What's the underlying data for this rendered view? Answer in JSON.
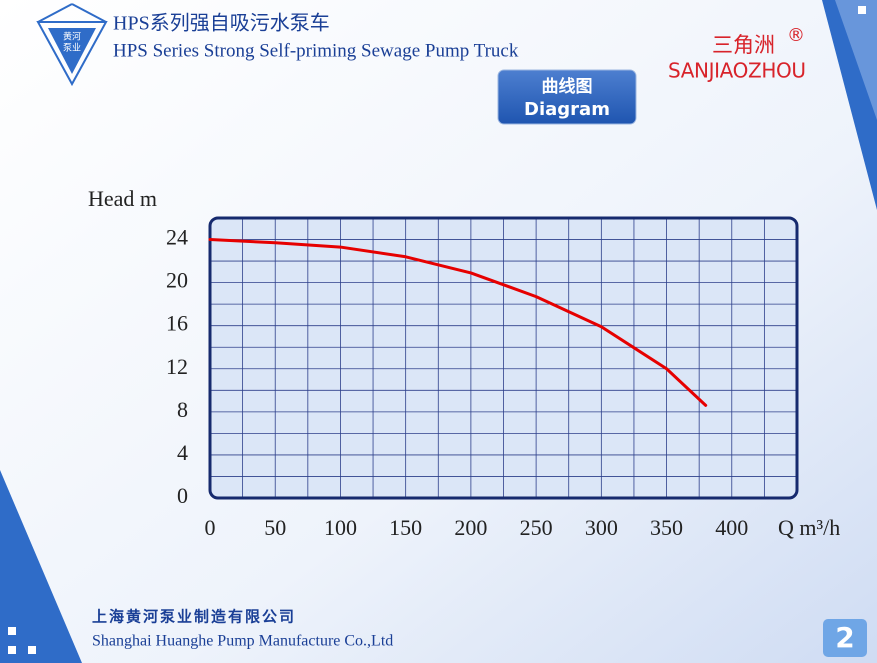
{
  "header": {
    "logo": [
      "黄河",
      "泵业"
    ],
    "title_cn": "HPS系列强自吸污水泵车",
    "title_en": "HPS Series Strong Self-priming Sewage Pump Truck",
    "button_cn": "曲线图",
    "button_en": "Diagram",
    "brand_cn": "三角洲",
    "brand_mark": "®",
    "brand_latin": "SANJIAOZHOU"
  },
  "chart_data": {
    "type": "line",
    "y_label": "Head m",
    "x_label": "Q m³/h",
    "x": [
      0,
      50,
      100,
      150,
      200,
      250,
      300,
      350,
      380
    ],
    "values": [
      24,
      23.7,
      23.3,
      22.4,
      20.9,
      18.7,
      15.9,
      12,
      8.6
    ],
    "color": "#e60000",
    "xlim": [
      0,
      450
    ],
    "ylim": [
      0,
      26
    ],
    "xticks": [
      0,
      50,
      100,
      150,
      200,
      250,
      300,
      350,
      400
    ],
    "yticks": [
      0,
      4,
      8,
      12,
      16,
      20,
      24
    ],
    "xgrid": [
      25,
      50,
      75,
      100,
      125,
      150,
      175,
      200,
      225,
      250,
      275,
      300,
      325,
      350,
      375,
      400,
      425
    ],
    "ygrid": [
      2,
      4,
      6,
      8,
      10,
      12,
      14,
      16,
      18,
      20,
      22,
      24
    ],
    "grid": true
  },
  "footer": {
    "company_cn": "上海黄河泵业制造有限公司",
    "company_en": "Shanghai Huanghe Pump Manufacture Co.,Ltd",
    "page": "2"
  }
}
